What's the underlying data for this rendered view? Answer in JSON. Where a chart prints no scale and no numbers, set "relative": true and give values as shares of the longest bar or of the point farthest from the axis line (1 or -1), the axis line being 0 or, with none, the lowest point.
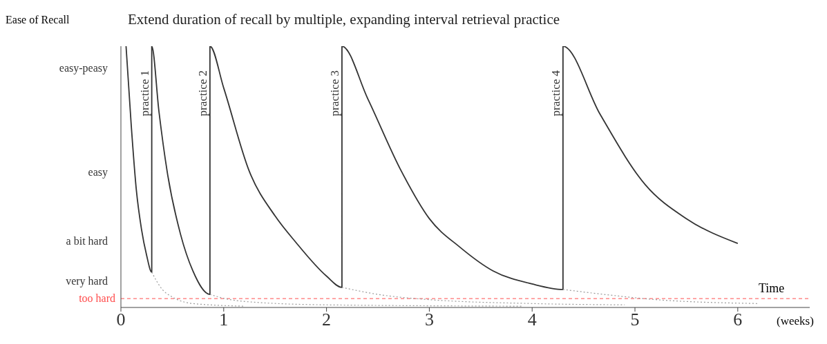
{
  "chart_data": {
    "type": "line",
    "title": "Extend duration of recall by multiple, expanding interval retrieval practice",
    "ylabel": "Ease of Recall",
    "xlabel": "Time",
    "relative": true,
    "xlim": [
      0,
      6.7
    ],
    "xticks": [
      0,
      1,
      2,
      3,
      4,
      5,
      6
    ],
    "marker": "none",
    "series": [
      {
        "color": "#333333",
        "line_style": "solid",
        "x": [
          0.05,
          0.1,
          0.15,
          0.2,
          0.25,
          0.3,
          0.3,
          0.37,
          0.45,
          0.58,
          0.7,
          0.866,
          0.866,
          1.0,
          1.25,
          1.5,
          1.7,
          2.0,
          2.15,
          2.15,
          2.4,
          2.73,
          3.0,
          3.3,
          3.62,
          4.0,
          4.3,
          4.3,
          4.66,
          5.1,
          5.5,
          6.0
        ],
        "values": [
          1,
          0.7,
          0.45,
          0.3,
          0.2,
          0.135,
          1,
          0.75,
          0.52,
          0.28,
          0.14,
          0.05,
          1,
          0.84,
          0.52,
          0.35,
          0.25,
          0.12,
          0.077,
          1,
          0.8,
          0.52,
          0.34,
          0.23,
          0.14,
          0.09,
          0.069,
          1,
          0.74,
          0.47,
          0.34,
          0.245
        ]
      },
      {
        "color": "#999999",
        "line_style": "dotted",
        "x": [
          0.3,
          0.4,
          0.5,
          0.7,
          1.2
        ],
        "values": [
          0.135,
          0.07,
          0.04,
          0.015,
          0.005
        ]
      },
      {
        "color": "#999999",
        "line_style": "dotted",
        "x": [
          0.866,
          1.0,
          1.3,
          2.0,
          3.9
        ],
        "values": [
          0.05,
          0.035,
          0.02,
          0.01,
          0.005
        ]
      },
      {
        "color": "#999999",
        "line_style": "dotted",
        "x": [
          2.15,
          2.5,
          3.0,
          4.0,
          4.9
        ],
        "values": [
          0.077,
          0.05,
          0.03,
          0.015,
          0.01
        ]
      },
      {
        "color": "#999999",
        "line_style": "dotted",
        "x": [
          4.3,
          4.7,
          5.2,
          6.2
        ],
        "values": [
          0.069,
          0.05,
          0.03,
          0.015
        ]
      }
    ],
    "ref_lines": [
      {
        "axis": "y",
        "value": 0.034,
        "label": "too hard",
        "color": "#ff4d4d",
        "line_style": "dashed"
      }
    ],
    "annotations": [
      {
        "text": "practice 1",
        "x": 0.3,
        "y": 0.82
      },
      {
        "text": "practice 2",
        "x": 0.866,
        "y": 0.82
      },
      {
        "text": "practice 3",
        "x": 2.15,
        "y": 0.82
      },
      {
        "text": "practice 4",
        "x": 4.3,
        "y": 0.82
      },
      "(weeks)",
      "easy-peasy",
      "easy",
      "a bit hard",
      "very hard"
    ]
  }
}
